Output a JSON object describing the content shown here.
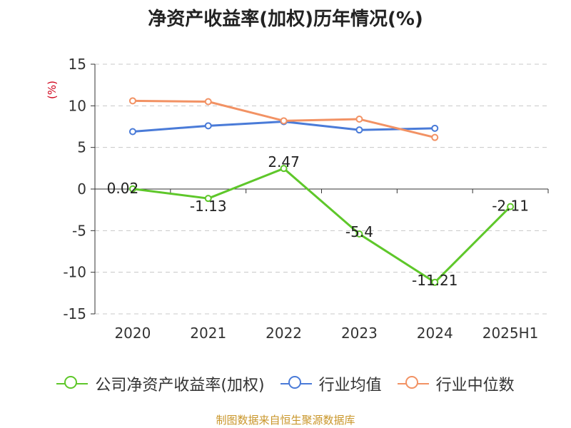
{
  "chart_data": {
    "type": "line",
    "title": "净资产收益率(加权)历年情况(%)",
    "ylabel": "(%)",
    "xlabel": "",
    "categories": [
      "2020",
      "2021",
      "2022",
      "2023",
      "2024",
      "2025H1"
    ],
    "ylim": [
      -15,
      15
    ],
    "yticks": [
      15,
      10,
      5,
      0,
      -5,
      -10,
      -15
    ],
    "grid": true,
    "legend_position": "bottom",
    "series": [
      {
        "name": "公司净资产收益率(加权)",
        "color": "#5ec72a",
        "values": [
          0.02,
          -1.13,
          2.47,
          -5.4,
          -11.21,
          -2.11
        ],
        "labels": [
          "0.02",
          "-1.13",
          "2.47",
          "-5.4",
          "-11.21",
          "-2.11"
        ]
      },
      {
        "name": "行业均值",
        "color": "#4a7bd8",
        "values": [
          6.9,
          7.6,
          8.1,
          7.1,
          7.3,
          null
        ]
      },
      {
        "name": "行业中位数",
        "color": "#f29264",
        "values": [
          10.6,
          10.5,
          8.2,
          8.4,
          6.2,
          null
        ]
      }
    ]
  },
  "source": "制图数据来自恒生聚源数据库"
}
